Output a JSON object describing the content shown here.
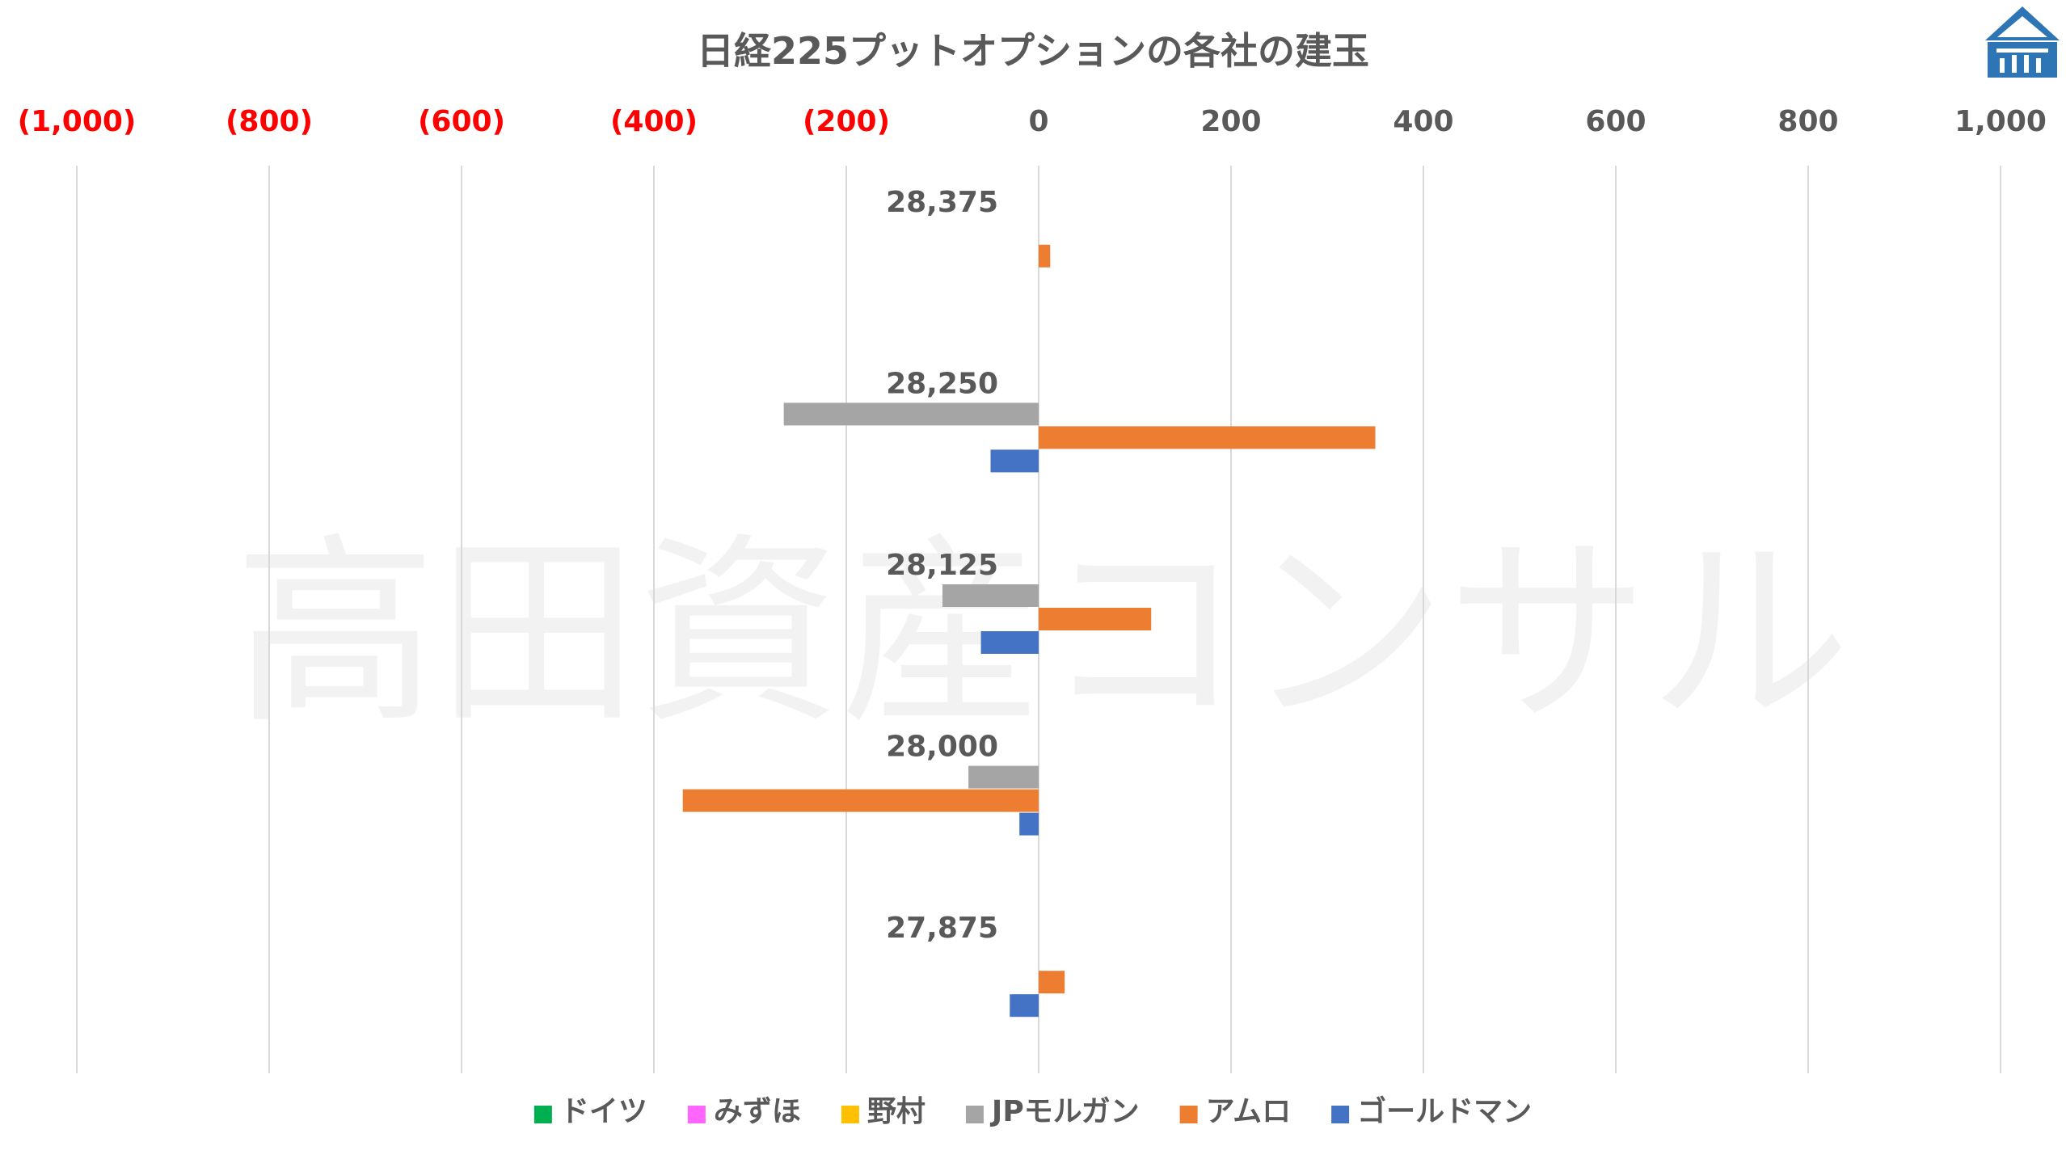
{
  "chart_data": {
    "type": "bar",
    "orientation": "horizontal",
    "title": "日経225プットオプションの各社の建玉",
    "xlim": [
      -1000,
      1000
    ],
    "x_ticks": [
      -1000,
      -800,
      -600,
      -400,
      -200,
      0,
      200,
      400,
      600,
      800,
      1000
    ],
    "x_tick_labels": [
      "(1,000)",
      "(800)",
      "(600)",
      "(400)",
      "(200)",
      "0",
      "200",
      "400",
      "600",
      "800",
      "1,000"
    ],
    "negative_tick_color": "#ff0000",
    "positive_tick_color": "#595959",
    "grid": "vertical",
    "legend_position": "bottom",
    "categories": [
      "28,375",
      "28,250",
      "28,125",
      "28,000",
      "27,875"
    ],
    "series": [
      {
        "name": "ドイツ",
        "color": "#00b050",
        "values": [
          0,
          0,
          0,
          0,
          0
        ]
      },
      {
        "name": "みずほ",
        "color": "#ff66ff",
        "values": [
          0,
          0,
          0,
          0,
          0
        ]
      },
      {
        "name": "野村",
        "color": "#ffc000",
        "values": [
          0,
          0,
          0,
          0,
          0
        ]
      },
      {
        "name": "JPモルガン",
        "color": "#a5a5a5",
        "values": [
          0,
          -265,
          -100,
          -73,
          0
        ]
      },
      {
        "name": "アムロ",
        "color": "#ed7d31",
        "values": [
          12,
          350,
          117,
          -370,
          27
        ]
      },
      {
        "name": "ゴールドマン",
        "color": "#4472c4",
        "values": [
          0,
          -50,
          -60,
          -20,
          -30
        ]
      }
    ]
  },
  "watermark": "高田資産コンサル",
  "logo": {
    "icon": "house-logo-icon",
    "color": "#2e75b6"
  }
}
